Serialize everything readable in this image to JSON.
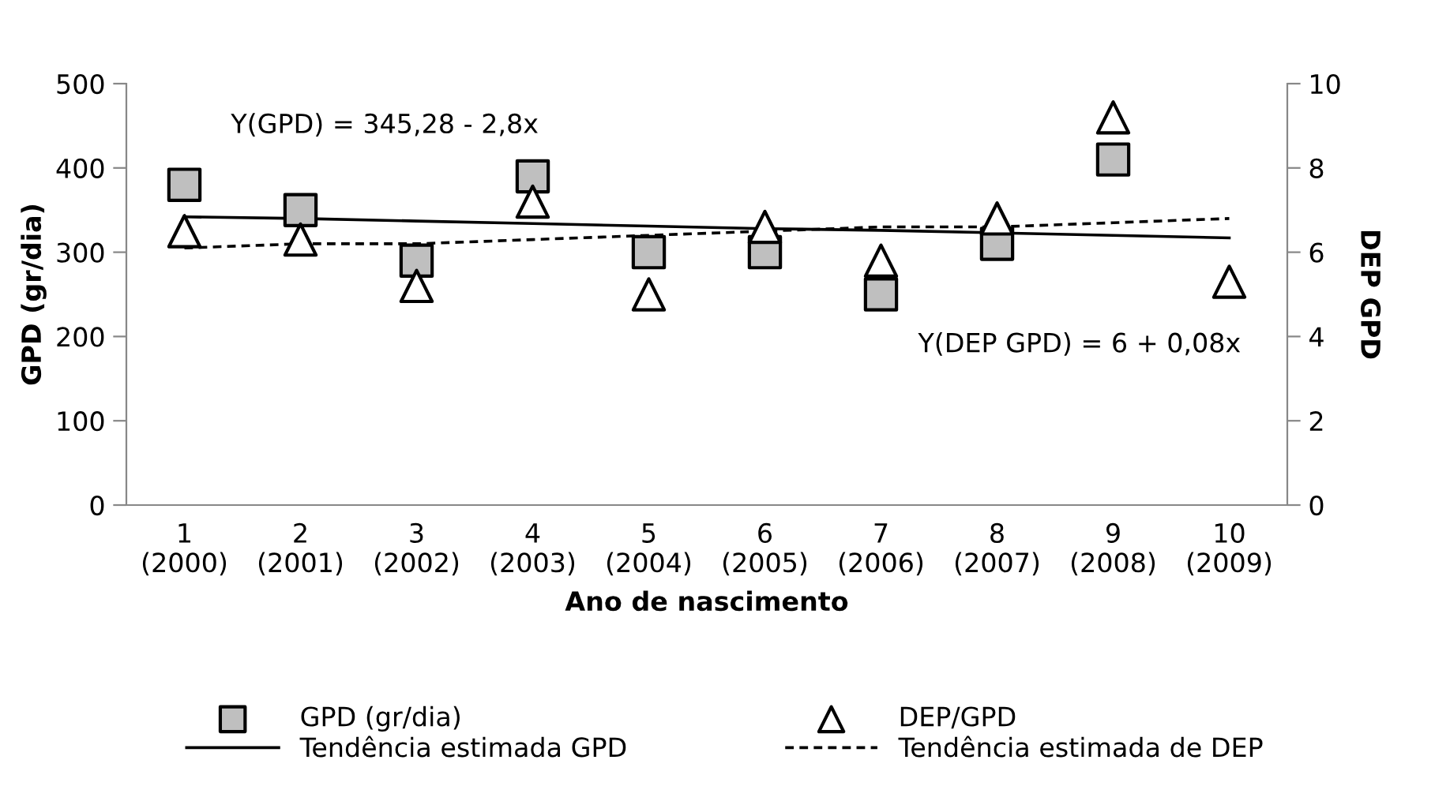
{
  "chart_data": {
    "type": "scatter",
    "xlabel": "Ano de nascimento",
    "ylabel": "GPD (gr/dia)",
    "y2label": "DEP GPD",
    "categories": [
      "1\n(2000)",
      "2\n(2001)",
      "3\n(2002)",
      "4\n(2003)",
      "5\n(2004)",
      "6\n(2005)",
      "7\n(2006)",
      "8\n(2007)",
      "9\n(2008)",
      "10\n(2009)"
    ],
    "series": [
      {
        "name": "GPD (gr/dia)",
        "marker": "square",
        "color": "#bfbfbf",
        "values": [
          380,
          350,
          290,
          390,
          300,
          300,
          250,
          310,
          410,
          null
        ]
      },
      {
        "name": "DEP/GPD",
        "marker": "triangle",
        "color": "#ffffff",
        "axis": "y2",
        "values": [
          6.5,
          6.3,
          5.2,
          7.2,
          5.0,
          6.6,
          5.8,
          6.8,
          9.2,
          5.3
        ]
      },
      {
        "name": "Tendência estimada GPD",
        "type": "line",
        "line_style": "solid",
        "color": "#000000",
        "values": [
          342,
          340,
          337,
          334,
          331,
          328,
          326,
          323,
          320,
          317
        ]
      },
      {
        "name": "Tendência estimada de DEP",
        "type": "line",
        "line_style": "dashed",
        "color": "#000000",
        "axis": "y2",
        "values": [
          6.1,
          6.2,
          6.2,
          6.3,
          6.4,
          6.5,
          6.6,
          6.6,
          6.7,
          6.8
        ]
      }
    ],
    "ylim": [
      0,
      500
    ],
    "yticks": [
      0,
      100,
      200,
      300,
      400,
      500
    ],
    "y2lim": [
      0,
      10
    ],
    "y2ticks": [
      0,
      2,
      4,
      6,
      8,
      10
    ],
    "annotations": [
      "Y(GPD) = 345,28 - 2,8x",
      "Y(DEP GPD) = 6 + 0,08x"
    ],
    "grid": false,
    "legend": "bottom"
  }
}
